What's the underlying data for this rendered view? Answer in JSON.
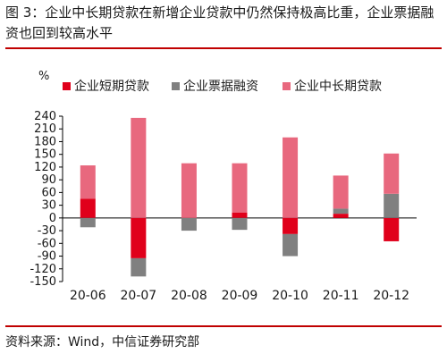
{
  "title": "图 3：企业中长期贷款在新增企业贷款中仍然保持极高比重，企业票据融资也回到较高水平",
  "source": "资料来源：Wind，中信证券研究部",
  "chart_data": {
    "type": "bar",
    "stacked": true,
    "unit": "%",
    "categories": [
      "20-06",
      "20-07",
      "20-08",
      "20-09",
      "20-10",
      "20-11",
      "20-12"
    ],
    "series": [
      {
        "name": "企业短期贷款",
        "color": "#e0001b",
        "values": [
          45,
          -95,
          0,
          13,
          -38,
          10,
          -55
        ]
      },
      {
        "name": "企业票据融资",
        "color": "#808080",
        "values": [
          -22,
          -43,
          -30,
          -28,
          -52,
          12,
          57
        ]
      },
      {
        "name": "企业中长期贷款",
        "color": "#e8687e",
        "values": [
          79,
          236,
          129,
          116,
          190,
          78,
          95
        ]
      }
    ],
    "ylim": [
      -150,
      240
    ],
    "yticks": [
      240,
      210,
      180,
      150,
      120,
      90,
      60,
      30,
      0,
      -30,
      -60,
      -90,
      -120,
      -150
    ],
    "legend_position": "top",
    "grid": false
  }
}
